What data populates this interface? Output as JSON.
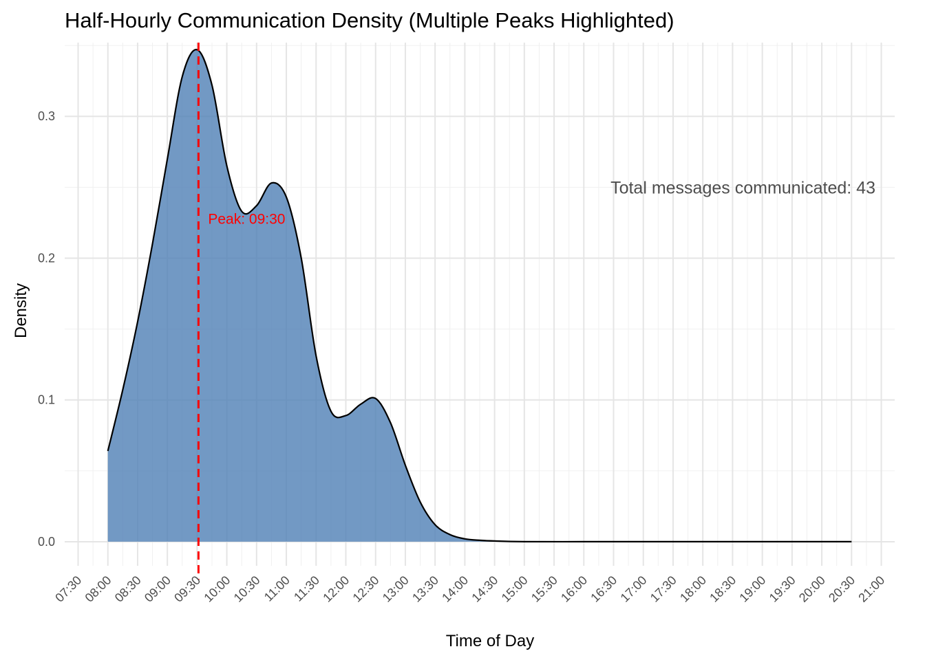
{
  "chart_data": {
    "type": "area",
    "title": "Half-Hourly Communication Density (Multiple Peaks Highlighted)",
    "xlabel": "Time of Day",
    "ylabel": "Density",
    "x_ticks": [
      "07:30",
      "08:00",
      "08:30",
      "09:00",
      "09:30",
      "10:00",
      "10:30",
      "11:00",
      "11:30",
      "12:00",
      "12:30",
      "13:00",
      "13:30",
      "14:00",
      "14:30",
      "15:00",
      "15:30",
      "16:00",
      "16:30",
      "17:00",
      "17:30",
      "18:00",
      "18:30",
      "19:00",
      "19:30",
      "20:00",
      "20:30",
      "21:00"
    ],
    "xlim": [
      "07:30",
      "21:00"
    ],
    "y_ticks": [
      "0.0",
      "0.1",
      "0.2",
      "0.3"
    ],
    "ylim": [
      -0.017,
      0.352
    ],
    "grid": true,
    "fill_color": "#4f7fb5",
    "line_color": "#000000",
    "x": [
      "08:00",
      "08:15",
      "08:30",
      "08:45",
      "09:00",
      "09:15",
      "09:30",
      "09:45",
      "10:00",
      "10:15",
      "10:30",
      "10:45",
      "11:00",
      "11:15",
      "11:30",
      "11:45",
      "12:00",
      "12:15",
      "12:30",
      "12:45",
      "13:00",
      "13:15",
      "13:30",
      "13:45",
      "14:00",
      "14:15",
      "14:30",
      "15:00",
      "16:00",
      "17:00",
      "18:00",
      "19:00",
      "20:00",
      "20:30"
    ],
    "y": [
      0.064,
      0.107,
      0.155,
      0.21,
      0.27,
      0.328,
      0.347,
      0.322,
      0.265,
      0.233,
      0.237,
      0.253,
      0.243,
      0.2,
      0.131,
      0.092,
      0.089,
      0.097,
      0.101,
      0.084,
      0.054,
      0.028,
      0.012,
      0.005,
      0.002,
      0.001,
      0.0005,
      0.0,
      0.0,
      0.0,
      0.0,
      0.0,
      0.0,
      0.0
    ],
    "peak_line": {
      "x": "09:30",
      "label": "Peak: 09:30",
      "color": "#ff0000"
    },
    "annotation": "Total messages communicated: 43"
  }
}
